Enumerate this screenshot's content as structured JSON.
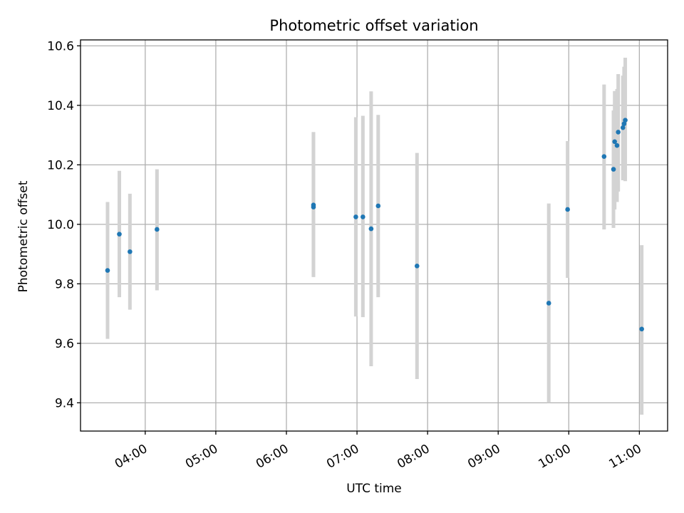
{
  "chart_data": {
    "type": "scatter",
    "title": "Photometric offset variation",
    "xlabel": "UTC time",
    "ylabel": "Photometric offset",
    "x_axis_kind": "time",
    "xlim": [
      "03:05",
      "11:24"
    ],
    "ylim": [
      9.305,
      10.62
    ],
    "grid": true,
    "x_ticks": [
      "04:00",
      "05:00",
      "06:00",
      "07:00",
      "08:00",
      "09:00",
      "10:00",
      "11:00"
    ],
    "y_ticks": [
      "9.4",
      "9.6",
      "9.8",
      "10.0",
      "10.2",
      "10.4",
      "10.6"
    ],
    "colors": {
      "points": "#1f77b4",
      "errorbars": "#d3d3d3",
      "grid": "#b0b0b0"
    },
    "points": [
      {
        "x": "03:28",
        "y": 9.845,
        "ylow": 9.615,
        "yhigh": 10.075
      },
      {
        "x": "03:38",
        "y": 9.967,
        "ylow": 9.755,
        "yhigh": 10.18
      },
      {
        "x": "03:47",
        "y": 9.908,
        "ylow": 9.713,
        "yhigh": 10.103
      },
      {
        "x": "04:10",
        "y": 9.983,
        "ylow": 9.778,
        "yhigh": 10.185
      },
      {
        "x": "06:23",
        "y": 10.065,
        "ylow": 9.823,
        "yhigh": 10.31
      },
      {
        "x": "06:23",
        "y": 10.058,
        "ylow": 9.823,
        "yhigh": 10.31
      },
      {
        "x": "06:59",
        "y": 10.025,
        "ylow": 9.69,
        "yhigh": 10.36
      },
      {
        "x": "07:05",
        "y": 10.025,
        "ylow": 9.688,
        "yhigh": 10.365
      },
      {
        "x": "07:12",
        "y": 9.985,
        "ylow": 9.523,
        "yhigh": 10.447
      },
      {
        "x": "07:18",
        "y": 10.062,
        "ylow": 9.755,
        "yhigh": 10.368
      },
      {
        "x": "07:51",
        "y": 9.86,
        "ylow": 9.48,
        "yhigh": 10.24
      },
      {
        "x": "09:43",
        "y": 9.735,
        "ylow": 9.4,
        "yhigh": 10.07
      },
      {
        "x": "09:59",
        "y": 10.05,
        "ylow": 9.82,
        "yhigh": 10.28
      },
      {
        "x": "10:30",
        "y": 10.228,
        "ylow": 9.983,
        "yhigh": 10.47
      },
      {
        "x": "10:38",
        "y": 10.185,
        "ylow": 9.988,
        "yhigh": 10.383
      },
      {
        "x": "10:39",
        "y": 10.278,
        "ylow": 10.05,
        "yhigh": 10.448
      },
      {
        "x": "10:41",
        "y": 10.265,
        "ylow": 10.075,
        "yhigh": 10.455
      },
      {
        "x": "10:42",
        "y": 10.31,
        "ylow": 10.11,
        "yhigh": 10.505
      },
      {
        "x": "10:46",
        "y": 10.325,
        "ylow": 10.148,
        "yhigh": 10.5
      },
      {
        "x": "10:47",
        "y": 10.338,
        "ylow": 10.148,
        "yhigh": 10.53
      },
      {
        "x": "10:48",
        "y": 10.35,
        "ylow": 10.145,
        "yhigh": 10.56
      },
      {
        "x": "11:02",
        "y": 9.648,
        "ylow": 9.36,
        "yhigh": 9.93
      }
    ]
  }
}
